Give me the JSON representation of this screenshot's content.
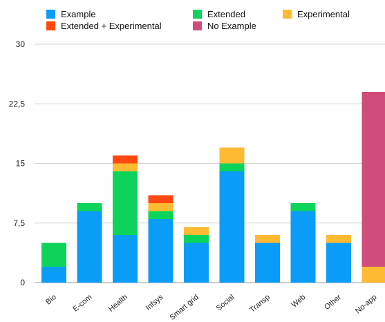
{
  "legend": [
    {
      "name": "Example",
      "color": "#0A9DF8"
    },
    {
      "name": "Extended",
      "color": "#0CD45A"
    },
    {
      "name": "Experimental",
      "color": "#FFBA32"
    },
    {
      "name": "Extended + Experimental",
      "color": "#FF4810"
    },
    {
      "name": "No Example",
      "color": "#D04C7A"
    }
  ],
  "chart_data": {
    "type": "bar",
    "stacked": true,
    "title": "",
    "xlabel": "",
    "ylabel": "",
    "ylim": [
      0,
      30
    ],
    "yticks": [
      0,
      7.5,
      15,
      22.5,
      30
    ],
    "ytick_labels": [
      "0",
      "7,5",
      "15",
      "22,5",
      "30"
    ],
    "grid": true,
    "legend_position": "top",
    "categories": [
      "Bio",
      "E-com",
      "Health",
      "Infsys",
      "Smart grid",
      "Social",
      "Transp",
      "Web",
      "Other",
      "No-app"
    ],
    "series": [
      {
        "name": "Example",
        "color": "#0A9DF8",
        "values": [
          2,
          9,
          6,
          8,
          5,
          14,
          5,
          9,
          5,
          0
        ]
      },
      {
        "name": "Extended",
        "color": "#0CD45A",
        "values": [
          3,
          1,
          8,
          1,
          1,
          1,
          0,
          1,
          0,
          0
        ]
      },
      {
        "name": "Experimental",
        "color": "#FFBA32",
        "values": [
          0,
          0,
          1,
          1,
          1,
          2,
          1,
          0,
          1,
          2
        ]
      },
      {
        "name": "Extended + Experimental",
        "color": "#FF4810",
        "values": [
          0,
          0,
          1,
          1,
          0,
          0,
          0,
          0,
          0,
          0
        ]
      },
      {
        "name": "No Example",
        "color": "#D04C7A",
        "values": [
          0,
          0,
          0,
          0,
          0,
          0,
          0,
          0,
          0,
          22
        ]
      }
    ]
  }
}
